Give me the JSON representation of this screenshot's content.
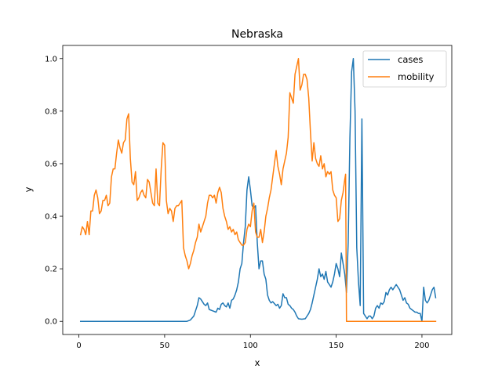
{
  "chart_data": {
    "type": "line",
    "title": "Nebraska",
    "xlabel": "x",
    "ylabel": "y",
    "xlim": [
      -9.4,
      217.4
    ],
    "ylim": [
      -0.05,
      1.05
    ],
    "xticks": [
      0,
      50,
      100,
      150,
      200
    ],
    "yticks": [
      0.0,
      0.2,
      0.4,
      0.6,
      0.8,
      1.0
    ],
    "xtick_labels": [
      "0",
      "50",
      "100",
      "150",
      "200"
    ],
    "ytick_labels": [
      "0.0",
      "0.2",
      "0.4",
      "0.6",
      "0.8",
      "1.0"
    ],
    "legend_position": "top-right",
    "series": [
      {
        "name": "cases",
        "color": "#1f77b4",
        "points": [
          [
            1,
            0.0
          ],
          [
            20,
            0.0
          ],
          [
            40,
            0.0
          ],
          [
            60,
            0.0
          ],
          [
            63,
            0.0
          ],
          [
            65,
            0.005
          ],
          [
            67,
            0.02
          ],
          [
            68,
            0.04
          ],
          [
            69,
            0.06
          ],
          [
            70,
            0.09
          ],
          [
            71,
            0.085
          ],
          [
            73,
            0.065
          ],
          [
            74,
            0.06
          ],
          [
            75,
            0.07
          ],
          [
            76,
            0.045
          ],
          [
            78,
            0.04
          ],
          [
            80,
            0.035
          ],
          [
            81,
            0.05
          ],
          [
            82,
            0.045
          ],
          [
            83,
            0.065
          ],
          [
            84,
            0.07
          ],
          [
            85,
            0.06
          ],
          [
            86,
            0.055
          ],
          [
            87,
            0.07
          ],
          [
            88,
            0.05
          ],
          [
            89,
            0.08
          ],
          [
            90,
            0.085
          ],
          [
            91,
            0.1
          ],
          [
            92,
            0.12
          ],
          [
            93,
            0.15
          ],
          [
            94,
            0.2
          ],
          [
            95,
            0.22
          ],
          [
            96,
            0.3
          ],
          [
            97,
            0.36
          ],
          [
            98,
            0.5
          ],
          [
            99,
            0.55
          ],
          [
            100,
            0.5
          ],
          [
            101,
            0.44
          ],
          [
            102,
            0.43
          ],
          [
            103,
            0.44
          ],
          [
            104,
            0.3
          ],
          [
            105,
            0.2
          ],
          [
            106,
            0.23
          ],
          [
            107,
            0.23
          ],
          [
            108,
            0.18
          ],
          [
            109,
            0.16
          ],
          [
            110,
            0.1
          ],
          [
            111,
            0.08
          ],
          [
            112,
            0.07
          ],
          [
            113,
            0.075
          ],
          [
            115,
            0.06
          ],
          [
            116,
            0.065
          ],
          [
            117,
            0.05
          ],
          [
            118,
            0.06
          ],
          [
            119,
            0.105
          ],
          [
            120,
            0.09
          ],
          [
            121,
            0.09
          ],
          [
            122,
            0.065
          ],
          [
            123,
            0.06
          ],
          [
            124,
            0.05
          ],
          [
            125,
            0.045
          ],
          [
            126,
            0.035
          ],
          [
            127,
            0.02
          ],
          [
            128,
            0.01
          ],
          [
            130,
            0.008
          ],
          [
            132,
            0.01
          ],
          [
            133,
            0.02
          ],
          [
            134,
            0.03
          ],
          [
            135,
            0.045
          ],
          [
            136,
            0.07
          ],
          [
            137,
            0.1
          ],
          [
            138,
            0.13
          ],
          [
            139,
            0.16
          ],
          [
            140,
            0.2
          ],
          [
            141,
            0.17
          ],
          [
            142,
            0.18
          ],
          [
            143,
            0.16
          ],
          [
            144,
            0.19
          ],
          [
            145,
            0.15
          ],
          [
            146,
            0.14
          ],
          [
            147,
            0.13
          ],
          [
            148,
            0.15
          ],
          [
            149,
            0.18
          ],
          [
            150,
            0.22
          ],
          [
            151,
            0.2
          ],
          [
            152,
            0.17
          ],
          [
            153,
            0.26
          ],
          [
            154,
            0.22
          ],
          [
            155,
            0.18
          ],
          [
            156,
            0.11
          ],
          [
            157,
            0.3
          ],
          [
            158,
            0.7
          ],
          [
            159,
            0.95
          ],
          [
            160,
            1.0
          ],
          [
            161,
            0.8
          ],
          [
            162,
            0.28
          ],
          [
            163,
            0.15
          ],
          [
            164,
            0.06
          ],
          [
            165,
            0.77
          ],
          [
            166,
            0.03
          ],
          [
            167,
            0.02
          ],
          [
            168,
            0.01
          ],
          [
            169,
            0.02
          ],
          [
            170,
            0.02
          ],
          [
            171,
            0.01
          ],
          [
            172,
            0.02
          ],
          [
            173,
            0.05
          ],
          [
            174,
            0.06
          ],
          [
            175,
            0.05
          ],
          [
            176,
            0.07
          ],
          [
            177,
            0.065
          ],
          [
            178,
            0.075
          ],
          [
            179,
            0.11
          ],
          [
            180,
            0.1
          ],
          [
            181,
            0.12
          ],
          [
            182,
            0.13
          ],
          [
            183,
            0.12
          ],
          [
            184,
            0.13
          ],
          [
            185,
            0.14
          ],
          [
            186,
            0.13
          ],
          [
            187,
            0.12
          ],
          [
            188,
            0.1
          ],
          [
            189,
            0.08
          ],
          [
            190,
            0.09
          ],
          [
            191,
            0.07
          ],
          [
            192,
            0.065
          ],
          [
            193,
            0.05
          ],
          [
            194,
            0.045
          ],
          [
            195,
            0.04
          ],
          [
            196,
            0.035
          ],
          [
            197,
            0.035
          ],
          [
            198,
            0.03
          ],
          [
            199,
            0.03
          ],
          [
            200,
            0.0
          ],
          [
            201,
            0.13
          ],
          [
            202,
            0.08
          ],
          [
            203,
            0.07
          ],
          [
            204,
            0.08
          ],
          [
            205,
            0.1
          ],
          [
            206,
            0.12
          ],
          [
            207,
            0.13
          ],
          [
            208,
            0.09
          ]
        ]
      },
      {
        "name": "mobility",
        "color": "#ff7f0e",
        "points": [
          [
            1,
            0.33
          ],
          [
            2,
            0.36
          ],
          [
            3,
            0.35
          ],
          [
            4,
            0.33
          ],
          [
            5,
            0.38
          ],
          [
            6,
            0.33
          ],
          [
            7,
            0.42
          ],
          [
            8,
            0.42
          ],
          [
            9,
            0.48
          ],
          [
            10,
            0.5
          ],
          [
            11,
            0.47
          ],
          [
            12,
            0.41
          ],
          [
            13,
            0.42
          ],
          [
            14,
            0.46
          ],
          [
            15,
            0.46
          ],
          [
            16,
            0.48
          ],
          [
            17,
            0.44
          ],
          [
            18,
            0.45
          ],
          [
            19,
            0.55
          ],
          [
            20,
            0.58
          ],
          [
            21,
            0.58
          ],
          [
            22,
            0.64
          ],
          [
            23,
            0.69
          ],
          [
            24,
            0.66
          ],
          [
            25,
            0.64
          ],
          [
            26,
            0.68
          ],
          [
            27,
            0.69
          ],
          [
            28,
            0.77
          ],
          [
            29,
            0.79
          ],
          [
            30,
            0.62
          ],
          [
            31,
            0.53
          ],
          [
            32,
            0.52
          ],
          [
            33,
            0.57
          ],
          [
            34,
            0.46
          ],
          [
            35,
            0.47
          ],
          [
            36,
            0.49
          ],
          [
            37,
            0.5
          ],
          [
            38,
            0.48
          ],
          [
            39,
            0.47
          ],
          [
            40,
            0.54
          ],
          [
            41,
            0.53
          ],
          [
            42,
            0.49
          ],
          [
            43,
            0.45
          ],
          [
            44,
            0.44
          ],
          [
            45,
            0.58
          ],
          [
            46,
            0.45
          ],
          [
            47,
            0.44
          ],
          [
            48,
            0.58
          ],
          [
            49,
            0.68
          ],
          [
            50,
            0.67
          ],
          [
            51,
            0.46
          ],
          [
            52,
            0.41
          ],
          [
            53,
            0.43
          ],
          [
            54,
            0.42
          ],
          [
            55,
            0.38
          ],
          [
            56,
            0.43
          ],
          [
            57,
            0.44
          ],
          [
            58,
            0.44
          ],
          [
            59,
            0.45
          ],
          [
            60,
            0.46
          ],
          [
            61,
            0.28
          ],
          [
            62,
            0.25
          ],
          [
            63,
            0.23
          ],
          [
            64,
            0.2
          ],
          [
            65,
            0.22
          ],
          [
            66,
            0.25
          ],
          [
            67,
            0.27
          ],
          [
            68,
            0.3
          ],
          [
            69,
            0.32
          ],
          [
            70,
            0.37
          ],
          [
            71,
            0.34
          ],
          [
            72,
            0.36
          ],
          [
            73,
            0.38
          ],
          [
            74,
            0.4
          ],
          [
            75,
            0.45
          ],
          [
            76,
            0.48
          ],
          [
            77,
            0.48
          ],
          [
            78,
            0.47
          ],
          [
            79,
            0.48
          ],
          [
            80,
            0.45
          ],
          [
            81,
            0.49
          ],
          [
            82,
            0.51
          ],
          [
            83,
            0.49
          ],
          [
            84,
            0.43
          ],
          [
            85,
            0.4
          ],
          [
            86,
            0.38
          ],
          [
            87,
            0.35
          ],
          [
            88,
            0.36
          ],
          [
            89,
            0.34
          ],
          [
            90,
            0.35
          ],
          [
            91,
            0.33
          ],
          [
            92,
            0.34
          ],
          [
            93,
            0.31
          ],
          [
            94,
            0.3
          ],
          [
            95,
            0.29
          ],
          [
            96,
            0.29
          ],
          [
            97,
            0.3
          ],
          [
            98,
            0.35
          ],
          [
            99,
            0.37
          ],
          [
            100,
            0.36
          ],
          [
            101,
            0.42
          ],
          [
            102,
            0.45
          ],
          [
            103,
            0.34
          ],
          [
            104,
            0.32
          ],
          [
            105,
            0.32
          ],
          [
            106,
            0.35
          ],
          [
            107,
            0.3
          ],
          [
            108,
            0.34
          ],
          [
            109,
            0.4
          ],
          [
            110,
            0.43
          ],
          [
            111,
            0.47
          ],
          [
            112,
            0.5
          ],
          [
            113,
            0.55
          ],
          [
            114,
            0.6
          ],
          [
            115,
            0.65
          ],
          [
            116,
            0.59
          ],
          [
            117,
            0.56
          ],
          [
            118,
            0.52
          ],
          [
            119,
            0.58
          ],
          [
            120,
            0.61
          ],
          [
            121,
            0.64
          ],
          [
            122,
            0.7
          ],
          [
            123,
            0.87
          ],
          [
            124,
            0.85
          ],
          [
            125,
            0.83
          ],
          [
            126,
            0.94
          ],
          [
            127,
            0.97
          ],
          [
            128,
            1.0
          ],
          [
            129,
            0.88
          ],
          [
            130,
            0.9
          ],
          [
            131,
            0.94
          ],
          [
            132,
            0.94
          ],
          [
            133,
            0.92
          ],
          [
            134,
            0.85
          ],
          [
            135,
            0.72
          ],
          [
            136,
            0.61
          ],
          [
            137,
            0.68
          ],
          [
            138,
            0.62
          ],
          [
            139,
            0.6
          ],
          [
            140,
            0.59
          ],
          [
            141,
            0.63
          ],
          [
            142,
            0.58
          ],
          [
            143,
            0.6
          ],
          [
            144,
            0.55
          ],
          [
            145,
            0.57
          ],
          [
            146,
            0.56
          ],
          [
            147,
            0.57
          ],
          [
            148,
            0.5
          ],
          [
            149,
            0.48
          ],
          [
            150,
            0.47
          ],
          [
            151,
            0.38
          ],
          [
            152,
            0.39
          ],
          [
            153,
            0.46
          ],
          [
            154,
            0.49
          ],
          [
            155,
            0.54
          ],
          [
            155.5,
            0.56
          ],
          [
            156,
            0.0
          ],
          [
            170,
            0.0
          ],
          [
            190,
            0.0
          ],
          [
            208,
            0.0
          ]
        ]
      }
    ]
  }
}
